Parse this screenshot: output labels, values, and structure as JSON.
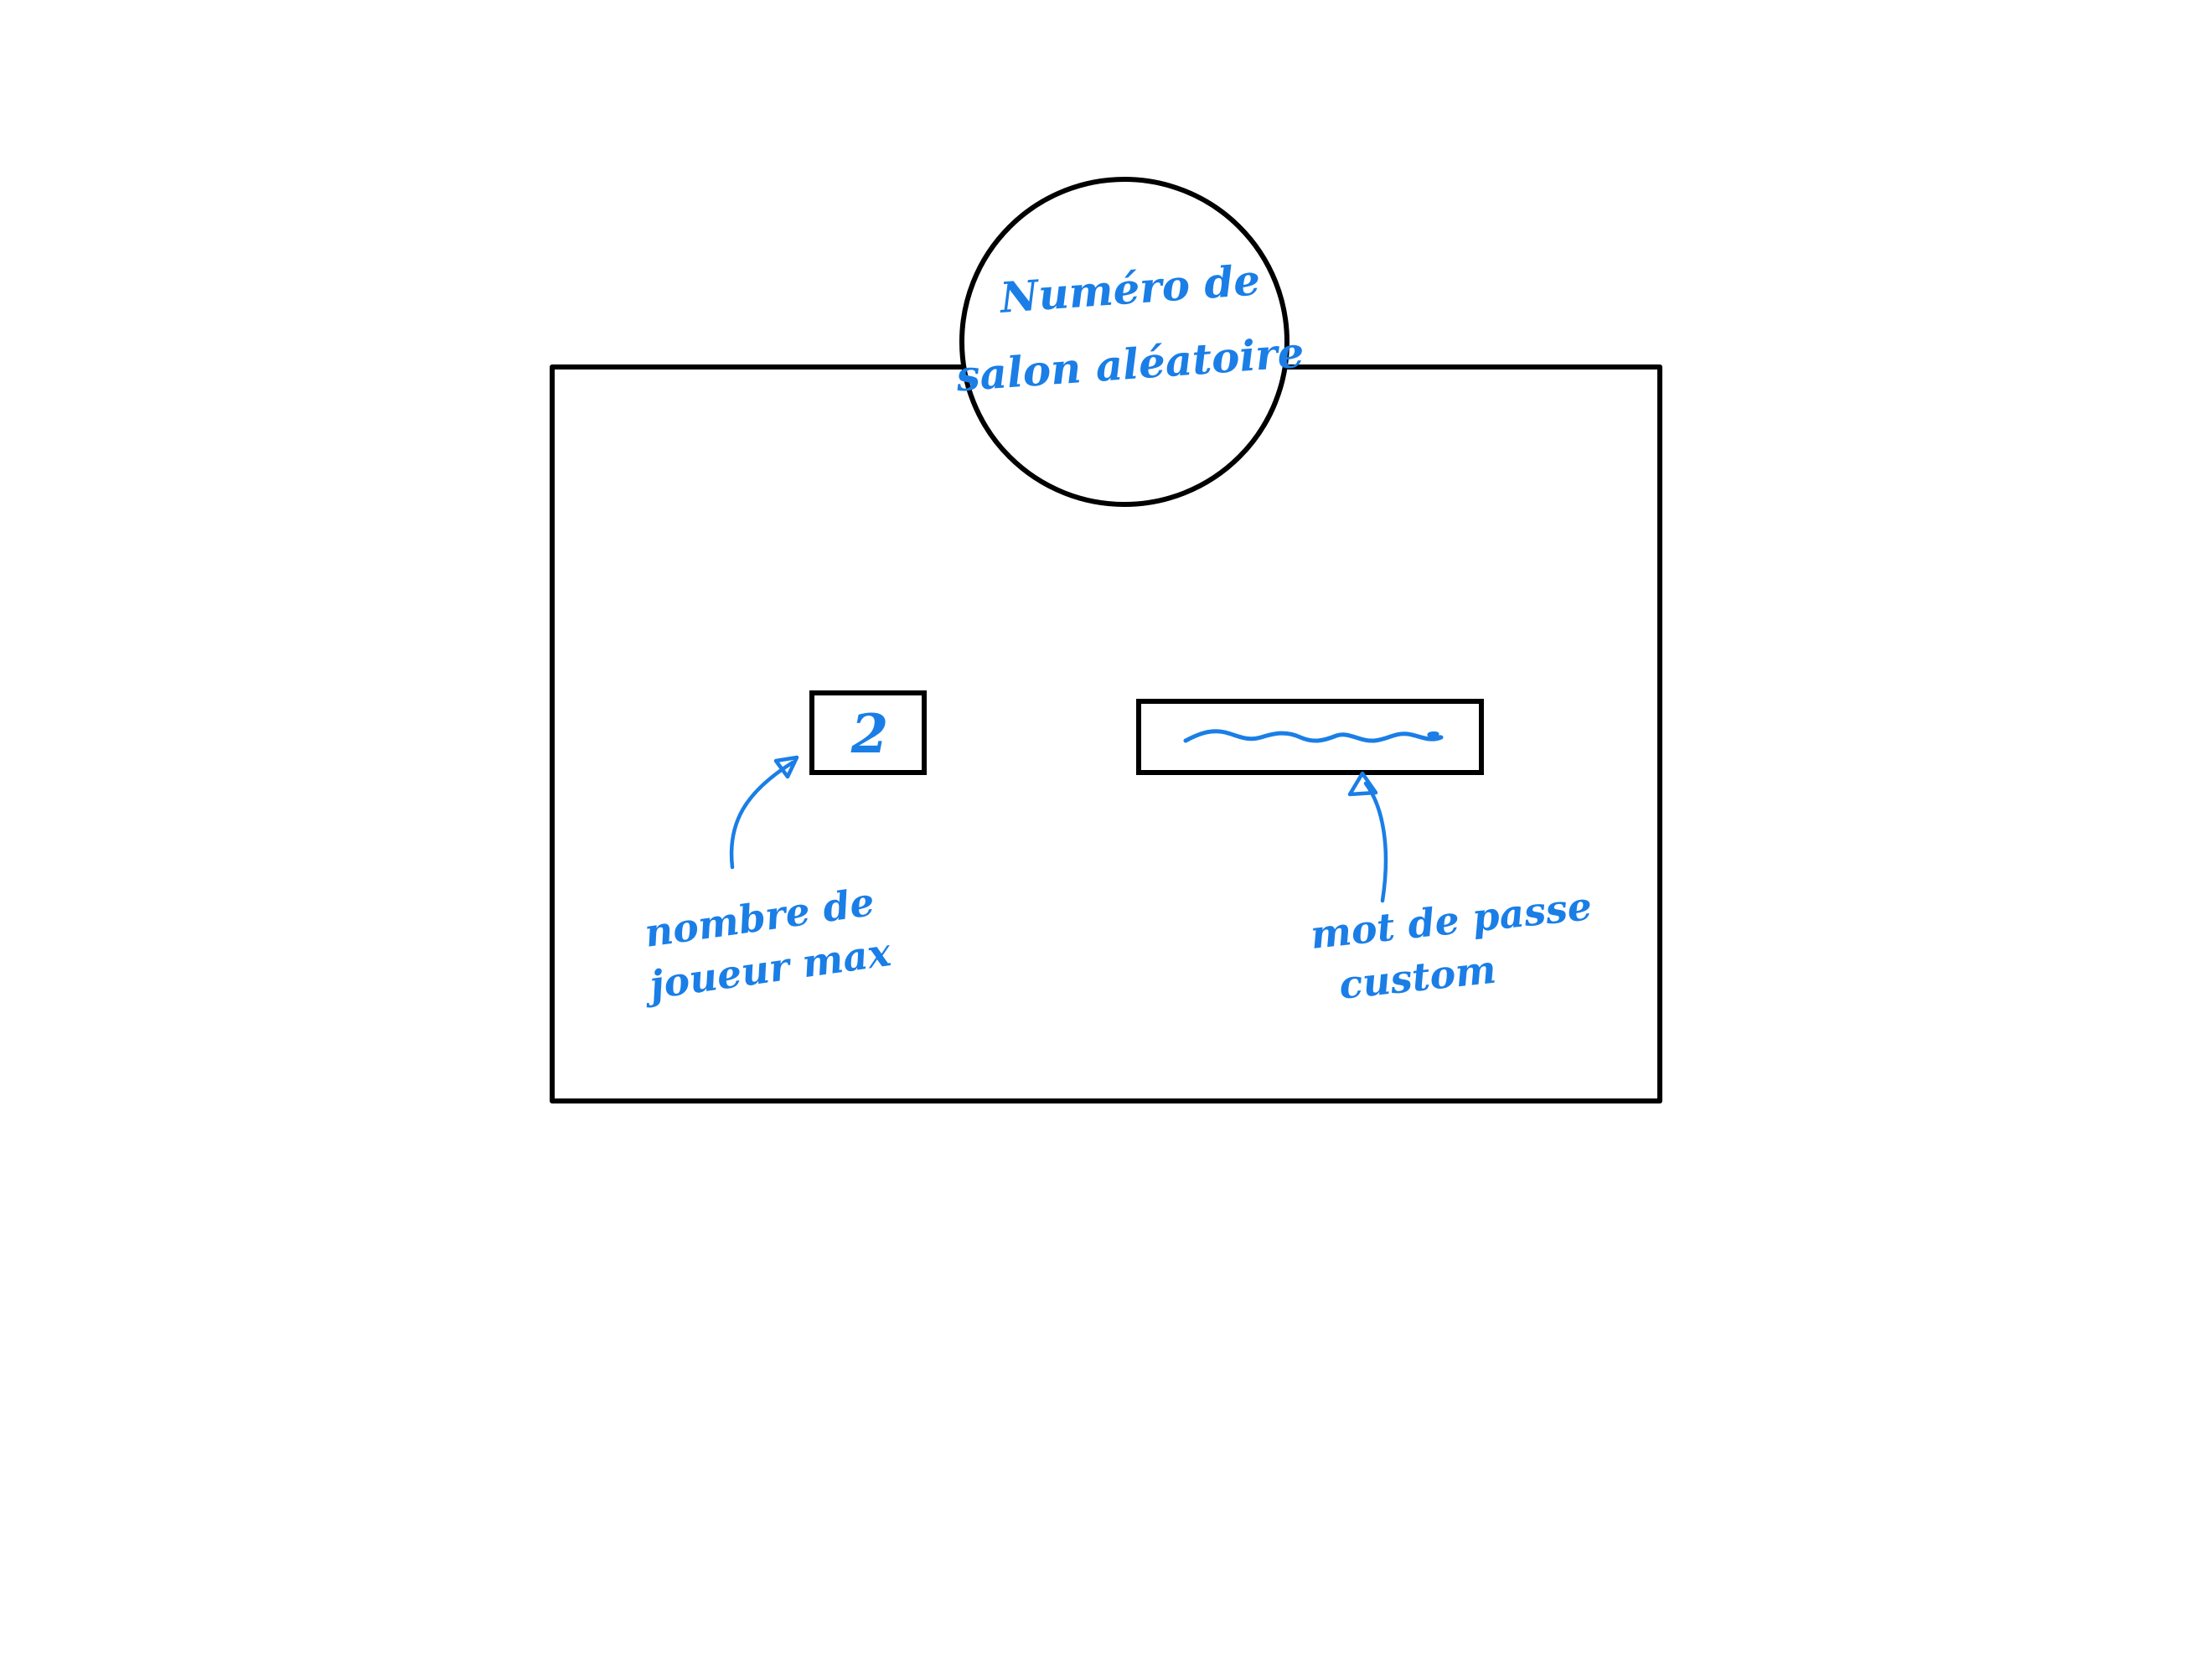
{
  "colors": {
    "outline": "#000000",
    "annotation": "#1a7ee6",
    "background": "#ffffff"
  },
  "circle": {
    "line1": "Numéro de",
    "line2": "salon aléatoire"
  },
  "max_players_field": {
    "value": "2"
  },
  "password_field": {
    "value_scribble": "~~~~~~~~"
  },
  "annotations": {
    "max_players_line1": "nombre de",
    "max_players_line2": "joueur max",
    "password_line1": "mot de passe",
    "password_line2": "custom"
  }
}
